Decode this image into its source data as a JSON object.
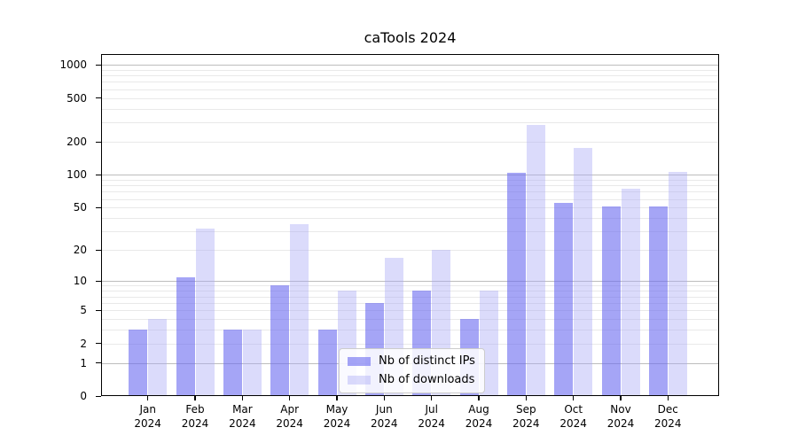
{
  "title": "caTools 2024",
  "chart_data": {
    "type": "bar",
    "title": "caTools 2024",
    "scale": "log1p",
    "grid": true,
    "legend_position": "inside lower-center",
    "xlabel": "",
    "ylabel": "",
    "categories": [
      "Jan 2024",
      "Feb 2024",
      "Mar 2024",
      "Apr 2024",
      "May 2024",
      "Jun 2024",
      "Jul 2024",
      "Aug 2024",
      "Sep 2024",
      "Oct 2024",
      "Nov 2024",
      "Dec 2024"
    ],
    "x_tick_line1": [
      "Jan",
      "Feb",
      "Mar",
      "Apr",
      "May",
      "Jun",
      "Jul",
      "Aug",
      "Sep",
      "Oct",
      "Nov",
      "Dec"
    ],
    "x_tick_line2": "2024",
    "series": [
      {
        "name": "Nb of distinct IPs",
        "color": "rgba(105,105,240,0.60)",
        "values": [
          3,
          11,
          3,
          9,
          3,
          6,
          8,
          4,
          104,
          55,
          51,
          51
        ]
      },
      {
        "name": "Nb of downloads",
        "color": "rgba(170,170,245,0.42)",
        "values": [
          4,
          32,
          3,
          35,
          8,
          17,
          20,
          8,
          283,
          175,
          74,
          106
        ]
      }
    ],
    "y_ticks": [
      {
        "value": 0,
        "label": "0"
      },
      {
        "value": 1,
        "label": "1"
      },
      {
        "value": 2,
        "label": "2"
      },
      {
        "value": 5,
        "label": "5"
      },
      {
        "value": 10,
        "label": "10"
      },
      {
        "value": 20,
        "label": "20"
      },
      {
        "value": 50,
        "label": "50"
      },
      {
        "value": 100,
        "label": "100"
      },
      {
        "value": 200,
        "label": "200"
      },
      {
        "value": 500,
        "label": "500"
      },
      {
        "value": 1000,
        "label": "1000"
      }
    ],
    "major_gridlines": [
      1,
      10,
      100,
      1000
    ],
    "minor_gridlines": [
      2,
      3,
      4,
      5,
      6,
      7,
      8,
      9,
      20,
      30,
      40,
      50,
      60,
      70,
      80,
      90,
      200,
      300,
      400,
      500,
      600,
      700,
      800,
      900
    ],
    "ylim": [
      0,
      1250
    ]
  },
  "colors": {
    "background": "#ffffff",
    "axis": "#000000",
    "major_grid": "#bdbdbd",
    "minor_grid": "#e9e9e9",
    "legend_border": "#cccccc",
    "legend_bg": "rgba(255,255,255,0.85)"
  }
}
